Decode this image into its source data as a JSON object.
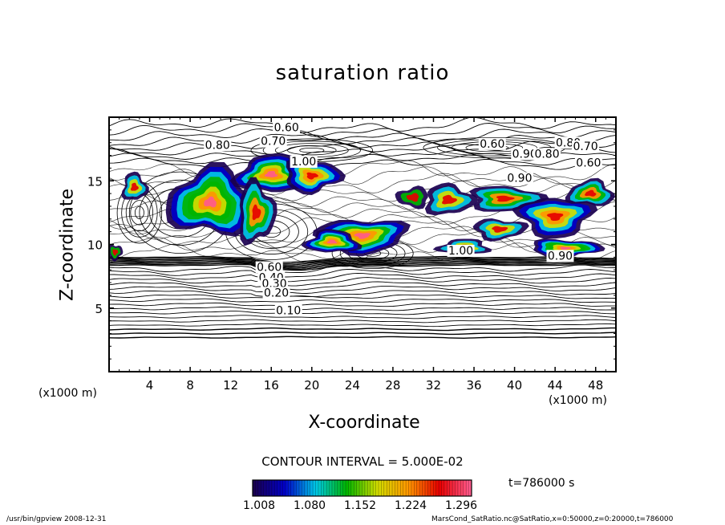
{
  "chart_data": {
    "type": "heatmap",
    "title": "saturation ratio",
    "xlabel": "X-coordinate",
    "ylabel": "Z-coordinate",
    "x_unit": "(x1000 m)",
    "xlim": [
      0,
      50
    ],
    "ylim": [
      0,
      20
    ],
    "x_ticks": [
      4,
      8,
      12,
      16,
      20,
      24,
      28,
      32,
      36,
      40,
      44,
      48
    ],
    "y_ticks": [
      5,
      10,
      15
    ],
    "contour_interval_text": "CONTOUR INTERVAL = 5.000E-02",
    "time_text": "t=786000 s",
    "colorbar": {
      "min": 1.008,
      "max": 1.32,
      "colormap": [
        "#1a0050",
        "#0000c8",
        "#00c8e6",
        "#00b400",
        "#d2dc00",
        "#ff9600",
        "#e60000",
        "#ff5a8c"
      ],
      "tick_labels": [
        "1.008",
        "1.080",
        "1.152",
        "1.224",
        "1.296"
      ],
      "tick_values": [
        1.008,
        1.08,
        1.152,
        1.224,
        1.296
      ]
    },
    "contour_labels": [
      {
        "text": "0.60",
        "x": 17.5,
        "z": 19.1
      },
      {
        "text": "0.70",
        "x": 16.2,
        "z": 18.0
      },
      {
        "text": "0.80",
        "x": 10.7,
        "z": 17.7
      },
      {
        "text": "0.60",
        "x": 37.8,
        "z": 17.8
      },
      {
        "text": "0.80",
        "x": 45.3,
        "z": 17.9
      },
      {
        "text": "0.70",
        "x": 47.0,
        "z": 17.6
      },
      {
        "text": "0.90",
        "x": 41.0,
        "z": 17.0
      },
      {
        "text": "0.80",
        "x": 43.2,
        "z": 17.0
      },
      {
        "text": "1.00",
        "x": 19.2,
        "z": 16.4
      },
      {
        "text": "0.60",
        "x": 47.3,
        "z": 16.3
      },
      {
        "text": "0.90",
        "x": 40.5,
        "z": 15.1
      },
      {
        "text": "1.00",
        "x": 34.7,
        "z": 9.4
      },
      {
        "text": "0.90",
        "x": 44.5,
        "z": 9.0
      },
      {
        "text": "0.60",
        "x": 15.8,
        "z": 8.1
      },
      {
        "text": "0.40",
        "x": 16.0,
        "z": 7.3
      },
      {
        "text": "0.30",
        "x": 16.3,
        "z": 6.8
      },
      {
        "text": "0.20",
        "x": 16.5,
        "z": 6.1
      },
      {
        "text": "0.10",
        "x": 17.7,
        "z": 4.7
      }
    ],
    "grid": false,
    "legend": "bottom"
  },
  "footer": {
    "program": "/usr/bin/gpview   2008-12-31",
    "source": "MarsCond_SatRatio.nc@SatRatio,x=0:50000,z=0:20000,t=786000"
  }
}
